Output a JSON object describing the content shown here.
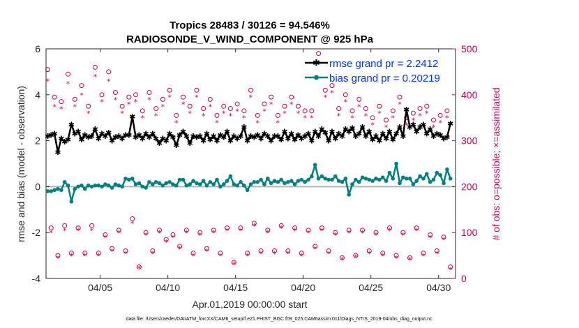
{
  "chart_data": {
    "type": "line",
    "title_line1": "Tropics 28483 / 30126 = 94.546%",
    "title_line2": "RADIOSONDE_V_WIND_COMPONENT @ 925 hPa",
    "xlabel": "Apr.01,2019 00:00:00 start",
    "ylabel_left": "rmse and bias (model - observation)",
    "ylabel_right": "# of obs: o=possible; ×=assimilated",
    "footer": "data file: /Users/raeder/DAI/ATM_forcXX/CAM6_setup/f.e21.FHIST_BGC.f09_025.CAM6assim.011/Diags_NTrS_2019-04/obs_diag_output.nc",
    "x_range_days": [
      1.0,
      31.25
    ],
    "x_ticks": [
      5,
      10,
      15,
      20,
      25,
      30
    ],
    "x_tick_labels": [
      "04/05",
      "04/10",
      "04/15",
      "04/20",
      "04/25",
      "04/30"
    ],
    "ylim_left": [
      -4,
      6
    ],
    "y_ticks_left": [
      -4,
      -2,
      0,
      2,
      4,
      6
    ],
    "ylim_right": [
      0,
      500
    ],
    "y_ticks_right": [
      0,
      100,
      200,
      300,
      400,
      500
    ],
    "legend": [
      "rmse grand pr = 2.2412",
      "bias grand pr = 0.20219"
    ],
    "legend_position": "top-right",
    "colors": {
      "rmse": "#000000",
      "bias": "#008080",
      "obs": "#cc0055",
      "zero_line": "#b3b3b3",
      "axis": "#262626"
    },
    "time_days": [
      1.125,
      1.375,
      1.625,
      1.875,
      2.125,
      2.375,
      2.625,
      2.875,
      3.125,
      3.375,
      3.625,
      3.875,
      4.125,
      4.375,
      4.625,
      4.875,
      5.125,
      5.375,
      5.625,
      5.875,
      6.125,
      6.375,
      6.625,
      6.875,
      7.125,
      7.375,
      7.625,
      7.875,
      8.125,
      8.375,
      8.625,
      8.875,
      9.125,
      9.375,
      9.625,
      9.875,
      10.125,
      10.375,
      10.625,
      10.875,
      11.125,
      11.375,
      11.625,
      11.875,
      12.125,
      12.375,
      12.625,
      12.875,
      13.125,
      13.375,
      13.625,
      13.875,
      14.125,
      14.375,
      14.625,
      14.875,
      15.125,
      15.375,
      15.625,
      15.875,
      16.125,
      16.375,
      16.625,
      16.875,
      17.125,
      17.375,
      17.625,
      17.875,
      18.125,
      18.375,
      18.625,
      18.875,
      19.125,
      19.375,
      19.625,
      19.875,
      20.125,
      20.375,
      20.625,
      20.875,
      21.125,
      21.375,
      21.625,
      21.875,
      22.125,
      22.375,
      22.625,
      22.875,
      23.125,
      23.375,
      23.625,
      23.875,
      24.125,
      24.375,
      24.625,
      24.875,
      25.125,
      25.375,
      25.625,
      25.875,
      26.125,
      26.375,
      26.625,
      26.875,
      27.125,
      27.375,
      27.625,
      27.875,
      28.125,
      28.375,
      28.625,
      28.875,
      29.125,
      29.375,
      29.625,
      29.875,
      30.125,
      30.375,
      30.625,
      30.875
    ],
    "rmse": [
      2.2,
      2.25,
      2.3,
      1.5,
      2.1,
      1.95,
      2.05,
      2.7,
      2.3,
      2.4,
      2.05,
      2.25,
      2.15,
      2.2,
      2.5,
      2.1,
      2.3,
      2.2,
      2.35,
      2.0,
      2.15,
      2.2,
      2.1,
      2.25,
      2.25,
      3.05,
      2.15,
      2.25,
      2.1,
      2.3,
      2.15,
      2.3,
      2.1,
      1.9,
      2.1,
      2.0,
      2.3,
      2.15,
      1.8,
      2.25,
      2.4,
      2.2,
      1.9,
      2.2,
      2.15,
      2.2,
      2.0,
      2.3,
      2.05,
      2.2,
      2.0,
      2.25,
      2.15,
      2.4,
      2.0,
      2.2,
      2.1,
      2.2,
      2.6,
      2.0,
      2.2,
      2.15,
      2.25,
      2.1,
      2.3,
      2.2,
      2.0,
      2.2,
      2.2,
      2.05,
      2.4,
      2.1,
      2.3,
      2.05,
      2.25,
      2.1,
      2.2,
      2.3,
      2.0,
      2.4,
      2.2,
      2.5,
      2.35,
      2.0,
      2.4,
      2.1,
      2.3,
      2.2,
      2.5,
      2.4,
      2.55,
      2.2,
      2.3,
      2.6,
      2.2,
      2.4,
      2.05,
      2.2,
      2.0,
      2.3,
      2.1,
      2.4,
      2.05,
      2.3,
      2.6,
      2.2,
      3.35,
      2.6,
      2.7,
      2.4,
      2.6,
      2.7,
      2.3,
      2.5,
      2.2,
      2.3,
      2.25,
      2.1,
      2.15,
      2.75
    ],
    "bias": [
      -0.2,
      -0.2,
      -0.15,
      -0.1,
      -0.15,
      0.2,
      0.05,
      -0.65,
      -0.1,
      0.0,
      0.05,
      -0.1,
      0.05,
      0.0,
      0.05,
      0.05,
      0.0,
      0.1,
      0.05,
      -0.05,
      0.1,
      0.05,
      0.0,
      0.35,
      0.3,
      0.35,
      0.1,
      0.15,
      0.0,
      -0.05,
      0.2,
      0.1,
      0.2,
      0.15,
      0.05,
      0.15,
      0.2,
      0.1,
      0.05,
      0.3,
      0.3,
      0.05,
      0.1,
      0.25,
      0.15,
      0.1,
      0.25,
      0.05,
      0.2,
      0.1,
      0.3,
      0.0,
      0.1,
      0.25,
      0.45,
      0.1,
      0.05,
      0.2,
      0.05,
      -0.15,
      0.1,
      0.2,
      0.2,
      0.3,
      0.1,
      0.35,
      0.15,
      0.25,
      0.2,
      0.3,
      0.15,
      0.2,
      0.25,
      0.1,
      0.25,
      0.3,
      0.2,
      0.3,
      0.45,
      0.95,
      0.35,
      0.45,
      0.35,
      0.3,
      0.3,
      0.45,
      0.25,
      0.2,
      0.35,
      -0.35,
      0.1,
      0.3,
      0.2,
      0.4,
      0.35,
      0.3,
      0.25,
      0.35,
      0.3,
      0.4,
      0.25,
      0.6,
      0.35,
      1.0,
      0.15,
      0.4,
      0.35,
      0.35,
      0.1,
      0.25,
      0.45,
      0.35,
      0.55,
      0.2,
      0.3,
      0.6,
      0.5,
      0.15,
      0.75,
      0.35
    ],
    "obs_possible": [
      455,
      110,
      395,
      50,
      385,
      115,
      445,
      55,
      390,
      110,
      420,
      55,
      375,
      115,
      460,
      55,
      400,
      95,
      450,
      65,
      405,
      105,
      375,
      60,
      395,
      130,
      400,
      25,
      365,
      100,
      405,
      60,
      370,
      105,
      390,
      85,
      410,
      95,
      355,
      70,
      395,
      105,
      375,
      55,
      410,
      100,
      370,
      65,
      390,
      105,
      355,
      55,
      375,
      110,
      370,
      35,
      380,
      110,
      365,
      55,
      410,
      120,
      355,
      60,
      380,
      105,
      395,
      60,
      355,
      115,
      375,
      60,
      395,
      110,
      375,
      55,
      365,
      105,
      365,
      70,
      490,
      110,
      410,
      60,
      420,
      100,
      370,
      45,
      400,
      105,
      365,
      50,
      390,
      105,
      370,
      60,
      350,
      100,
      375,
      55,
      345,
      110,
      365,
      50,
      395,
      100,
      350,
      45,
      360,
      110,
      370,
      55,
      375,
      95,
      345,
      60,
      355,
      90,
      365,
      25
    ],
    "obs_assimilated": [
      430,
      100,
      375,
      45,
      370,
      105,
      425,
      50,
      375,
      105,
      400,
      50,
      360,
      105,
      440,
      50,
      385,
      90,
      430,
      60,
      390,
      100,
      360,
      55,
      380,
      120,
      385,
      23,
      350,
      95,
      390,
      55,
      355,
      100,
      375,
      80,
      395,
      90,
      340,
      65,
      380,
      100,
      360,
      50,
      395,
      95,
      355,
      60,
      375,
      100,
      340,
      50,
      360,
      105,
      355,
      32,
      365,
      105,
      350,
      50,
      395,
      115,
      340,
      55,
      365,
      100,
      380,
      55,
      340,
      110,
      360,
      55,
      380,
      105,
      360,
      50,
      350,
      100,
      350,
      65,
      470,
      105,
      395,
      55,
      405,
      95,
      355,
      42,
      385,
      100,
      350,
      47,
      375,
      100,
      355,
      55,
      335,
      95,
      360,
      50,
      330,
      105,
      350,
      45,
      380,
      95,
      335,
      42,
      345,
      105,
      355,
      50,
      360,
      90,
      330,
      55,
      340,
      85,
      350,
      20
    ]
  }
}
